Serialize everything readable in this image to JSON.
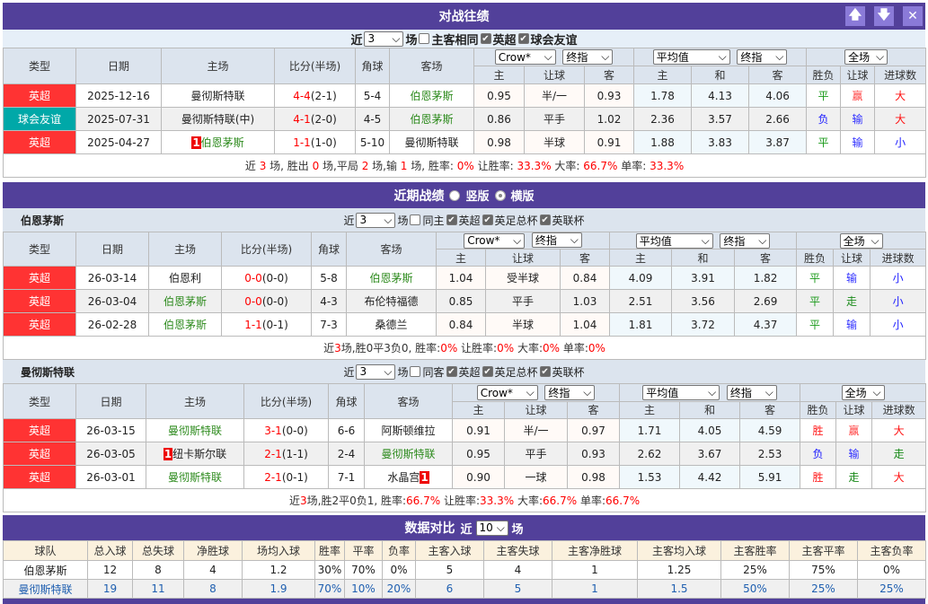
{
  "colors": {
    "title_bar": "#52409a",
    "epl": "#ff3333",
    "friendly": "#00a8a8",
    "team_green": "#2e8b1e",
    "highlight_red": "#ff0000"
  },
  "h2h": {
    "title": "对战往绩",
    "buttons": [
      "up-arrow-icon",
      "down-arrow-icon",
      "close-icon"
    ],
    "filter": {
      "near": "近",
      "count": "3",
      "unit": "场",
      "same_label": "主客相同",
      "leagues": [
        "英超",
        "球会友谊"
      ]
    },
    "headers": {
      "type": "类型",
      "date": "日期",
      "home": "主场",
      "score": "比分(半场)",
      "corner": "角球",
      "away": "客场",
      "company": "Crow*",
      "odds_kind": "终指",
      "avg": "平均值",
      "avg_kind": "终指",
      "period": "全场",
      "h": "主",
      "hc": "让球",
      "a": "客",
      "eh": "主",
      "ed": "和",
      "ea": "客",
      "wl": "胜负",
      "hcr": "让球",
      "ou": "进球数"
    },
    "rows": [
      {
        "type": "英超",
        "type_color": "#ff3333",
        "date": "2025-12-16",
        "home": {
          "t": "曼彻斯特联"
        },
        "ft": "4-4",
        "ht": "(2-1)",
        "corner": "5-4",
        "away": {
          "t": "伯恩茅斯",
          "green": true
        },
        "o": [
          "0.95",
          "半/一",
          "0.93"
        ],
        "e": [
          "1.78",
          "4.13",
          "4.06"
        ],
        "r": [
          "平",
          "赢",
          "大"
        ]
      },
      {
        "type": "球会友谊",
        "type_color": "#00a8a8",
        "date": "2025-07-31",
        "home": {
          "t": "曼彻斯特联(中)"
        },
        "ft": "4-1",
        "ht": "(2-0)",
        "corner": "4-5",
        "away": {
          "t": "伯恩茅斯",
          "green": true
        },
        "o": [
          "0.86",
          "平手",
          "1.02"
        ],
        "e": [
          "2.36",
          "3.57",
          "2.66"
        ],
        "r": [
          "负",
          "输",
          "大"
        ]
      },
      {
        "type": "英超",
        "type_color": "#ff3333",
        "date": "2025-04-27",
        "home": {
          "t": "伯恩茅斯",
          "green": true,
          "rank": "1"
        },
        "ft": "1-1",
        "ht": "(1-0)",
        "corner": "5-10",
        "away": {
          "t": "曼彻斯特联"
        },
        "o": [
          "0.98",
          "半球",
          "0.91"
        ],
        "e": [
          "1.88",
          "3.83",
          "3.87"
        ],
        "r": [
          "平",
          "输",
          "小"
        ]
      }
    ],
    "summary": [
      [
        "近 ",
        0
      ],
      [
        "3",
        1
      ],
      [
        " 场, 胜出 ",
        0
      ],
      [
        "0",
        1
      ],
      [
        " 场,平局 ",
        0
      ],
      [
        "2",
        1
      ],
      [
        " 场,输 ",
        0
      ],
      [
        "1",
        1
      ],
      [
        " 场, 胜率: ",
        0
      ],
      [
        "0%",
        1
      ],
      [
        " 让胜率: ",
        0
      ],
      [
        "33.3%",
        1
      ],
      [
        " 大率: ",
        0
      ],
      [
        "66.7%",
        1
      ],
      [
        " 单率: ",
        0
      ],
      [
        "33.3%",
        1
      ]
    ]
  },
  "recent": {
    "title": "近期战绩",
    "layout_options": [
      {
        "label": "竖版",
        "selected": false
      },
      {
        "label": "横版",
        "selected": true
      }
    ],
    "teams": [
      {
        "name": "伯恩茅斯",
        "filter": {
          "near": "近",
          "count": "3",
          "unit": "场",
          "same_label": "同主",
          "leagues": [
            "英超",
            "英足总杯",
            "英联杯"
          ]
        },
        "rows": [
          {
            "type": "英超",
            "date": "26-03-14",
            "home": {
              "t": "伯恩利"
            },
            "ft": "0-0",
            "ht": "(0-0)",
            "corner": "5-8",
            "away": {
              "t": "伯恩茅斯",
              "green": true
            },
            "o": [
              "1.04",
              "受半球",
              "0.84"
            ],
            "e": [
              "4.09",
              "3.91",
              "1.82"
            ],
            "r": [
              "平",
              "输",
              "小"
            ]
          },
          {
            "type": "英超",
            "date": "26-03-04",
            "home": {
              "t": "伯恩茅斯",
              "green": true
            },
            "ft": "0-0",
            "ht": "(0-0)",
            "corner": "4-3",
            "away": {
              "t": "布伦特福德"
            },
            "o": [
              "0.85",
              "平手",
              "1.03"
            ],
            "e": [
              "2.51",
              "3.56",
              "2.69"
            ],
            "r": [
              "平",
              "走",
              "小"
            ]
          },
          {
            "type": "英超",
            "date": "26-02-28",
            "home": {
              "t": "伯恩茅斯",
              "green": true
            },
            "ft": "1-1",
            "ht": "(0-1)",
            "corner": "7-3",
            "away": {
              "t": "桑德兰"
            },
            "o": [
              "0.84",
              "半球",
              "1.04"
            ],
            "e": [
              "1.81",
              "3.72",
              "4.37"
            ],
            "r": [
              "平",
              "输",
              "小"
            ]
          }
        ],
        "summary": [
          [
            "近",
            0
          ],
          [
            "3",
            1
          ],
          [
            "场,胜0平3负0, 胜率:",
            0
          ],
          [
            "0%",
            1
          ],
          [
            " 让胜率:",
            0
          ],
          [
            "0%",
            1
          ],
          [
            " 大率:",
            0
          ],
          [
            "0%",
            1
          ],
          [
            " 单率:",
            0
          ],
          [
            "0%",
            1
          ]
        ]
      },
      {
        "name": "曼彻斯特联",
        "filter": {
          "near": "近",
          "count": "3",
          "unit": "场",
          "same_label": "同客",
          "leagues": [
            "英超",
            "英足总杯",
            "英联杯"
          ]
        },
        "rows": [
          {
            "type": "英超",
            "date": "26-03-15",
            "home": {
              "t": "曼彻斯特联",
              "green": true
            },
            "ft": "3-1",
            "ht": "(0-0)",
            "corner": "6-6",
            "away": {
              "t": "阿斯顿维拉"
            },
            "o": [
              "0.91",
              "半/一",
              "0.97"
            ],
            "e": [
              "1.71",
              "4.05",
              "4.59"
            ],
            "r": [
              "胜",
              "赢",
              "大"
            ]
          },
          {
            "type": "英超",
            "date": "26-03-05",
            "home": {
              "t": "纽卡斯尔联",
              "rank": "1"
            },
            "ft": "2-1",
            "ht": "(1-1)",
            "corner": "2-4",
            "away": {
              "t": "曼彻斯特联",
              "green": true
            },
            "o": [
              "0.95",
              "平手",
              "0.93"
            ],
            "e": [
              "2.62",
              "3.67",
              "2.53"
            ],
            "r": [
              "负",
              "输",
              "走"
            ]
          },
          {
            "type": "英超",
            "date": "26-03-01",
            "home": {
              "t": "曼彻斯特联",
              "green": true
            },
            "ft": "2-1",
            "ht": "(0-1)",
            "corner": "7-1",
            "away": {
              "t": "水晶宫",
              "rank_after": "1"
            },
            "o": [
              "0.90",
              "一球",
              "0.98"
            ],
            "e": [
              "1.53",
              "4.42",
              "5.91"
            ],
            "r": [
              "胜",
              "走",
              "大"
            ]
          }
        ],
        "summary": [
          [
            "近",
            0
          ],
          [
            "3",
            1
          ],
          [
            "场,胜2平0负1, 胜率:",
            0
          ],
          [
            "66.7%",
            1
          ],
          [
            " 让胜率:",
            0
          ],
          [
            "33.3%",
            1
          ],
          [
            " 大率:",
            0
          ],
          [
            "66.7%",
            1
          ],
          [
            " 单率:",
            0
          ],
          [
            "66.7%",
            1
          ]
        ]
      }
    ]
  },
  "stats": {
    "title": "数据对比",
    "near": "近",
    "count": "10",
    "unit": "场",
    "headers": [
      "球队",
      "总入球",
      "总失球",
      "净胜球",
      "场均入球",
      "胜率",
      "平率",
      "负率",
      "主客入球",
      "主客失球",
      "主客净胜球",
      "主客均入球",
      "主客胜率",
      "主客平率",
      "主客负率"
    ],
    "rows": [
      [
        "伯恩茅斯",
        "12",
        "8",
        "4",
        "1.2",
        "30%",
        "70%",
        "0%",
        "5",
        "4",
        "1",
        "1.25",
        "25%",
        "75%",
        "0%"
      ],
      [
        "曼彻斯特联",
        "19",
        "11",
        "8",
        "1.9",
        "70%",
        "10%",
        "20%",
        "6",
        "5",
        "1",
        "1.5",
        "50%",
        "25%",
        "25%"
      ]
    ]
  }
}
